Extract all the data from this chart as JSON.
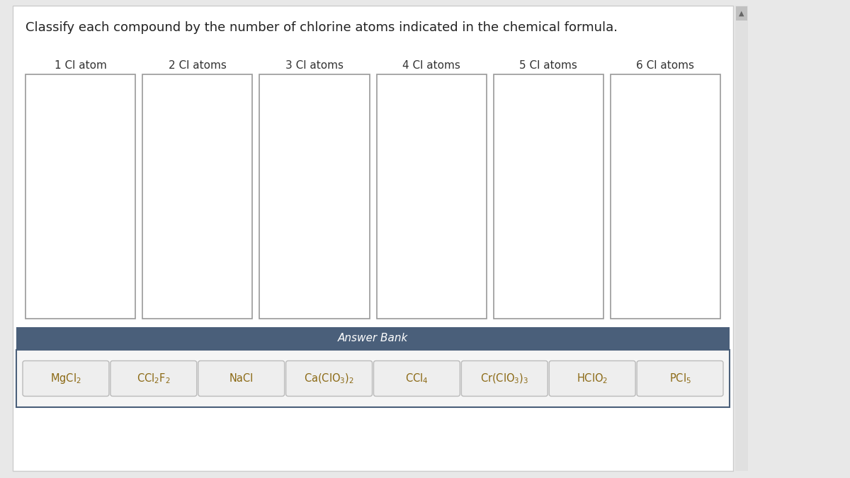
{
  "title": "Classify each compound by the number of chlorine atoms indicated in the chemical formula.",
  "title_color": "#222222",
  "title_fontsize": 13,
  "bg_color": "#e8e8e8",
  "panel_bg": "#ffffff",
  "categories": [
    "1 Cl atom",
    "2 Cl atoms",
    "3 Cl atoms",
    "4 Cl atoms",
    "5 Cl atoms",
    "6 Cl atoms"
  ],
  "answer_bank_label": "Answer Bank",
  "answer_bank_bg": "#4a5f7a",
  "answer_bank_text_color": "#ffffff",
  "answer_bank_fontsize": 11,
  "compound_labels": [
    "MgCl$_2$",
    "CCl$_2$F$_2$",
    "NaCl",
    "Ca(ClO$_3$)$_2$",
    "CCl$_4$",
    "Cr(ClO$_3$)$_3$",
    "HClO$_2$",
    "PCl$_5$"
  ],
  "box_edge_color": "#999999",
  "compound_text_color": "#8b6914",
  "category_fontsize": 11,
  "category_color": "#333333"
}
